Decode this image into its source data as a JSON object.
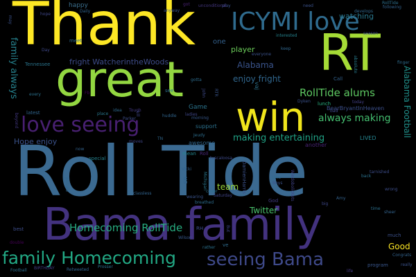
{
  "words": [
    {
      "id": "roll-tide",
      "text": "Roll Tide",
      "color": "#3b6a91"
    },
    {
      "id": "bama-family",
      "text": "Bama family",
      "color": "#43327f"
    },
    {
      "id": "thank",
      "text": "Thank",
      "color": "#fde725"
    },
    {
      "id": "rt",
      "text": "RT",
      "color": "#a5db36"
    },
    {
      "id": "great",
      "text": "great",
      "color": "#93d741"
    },
    {
      "id": "win",
      "text": "win",
      "color": "#f0e51c"
    },
    {
      "id": "icymi-love",
      "text": "ICYMI love",
      "color": "#2f6b8e"
    },
    {
      "id": "love-seeing",
      "text": "love seeing",
      "color": "#482071"
    },
    {
      "id": "family-homecoming",
      "text": "family Homecoming",
      "color": "#22a884"
    },
    {
      "id": "seeing-bama",
      "text": "seeing Bama",
      "color": "#3e4989"
    },
    {
      "id": "homecoming-rolltide",
      "text": "Homecoming RollTide",
      "color": "#27ad81"
    },
    {
      "id": "rolltide-alums",
      "text": "RollTide alums",
      "color": "#5ec962"
    },
    {
      "id": "always-making",
      "text": "always making",
      "color": "#44bf70"
    },
    {
      "id": "making-entertaining",
      "text": "making entertaining",
      "color": "#20a386"
    },
    {
      "id": "enjoy-fright",
      "text": "enjoy fright",
      "color": "#31678e"
    },
    {
      "id": "fright-watcher",
      "text": "fright WatcherintheWoods",
      "color": "#3e4c8a"
    },
    {
      "id": "family-always",
      "text": "family always",
      "color": "#26828e"
    },
    {
      "id": "alabama-football",
      "text": "Alabama Football",
      "color": "#21918c"
    },
    {
      "id": "alabama",
      "text": "Alabama",
      "color": "#3a548c"
    },
    {
      "id": "player",
      "text": "player",
      "color": "#6ccd5a"
    },
    {
      "id": "twitter",
      "text": "Twitter",
      "color": "#4ac16d"
    },
    {
      "id": "good",
      "text": "Good",
      "color": "#fde725"
    },
    {
      "id": "hope-enjoy",
      "text": "Hope enjoy",
      "color": "#3b528b"
    },
    {
      "id": "team",
      "text": "team",
      "color": "#9dd93b"
    },
    {
      "id": "watching",
      "text": "watching",
      "color": "#2a788e"
    },
    {
      "id": "happy",
      "text": "happy",
      "color": "#3b6f8e"
    },
    {
      "id": "game",
      "text": "Game",
      "color": "#2b748e"
    },
    {
      "id": "one",
      "text": "one",
      "color": "#34618d"
    },
    {
      "id": "awesome",
      "text": "awesome",
      "color": "#31668e"
    },
    {
      "id": "bearbryant",
      "text": "BearBryantInHeaven",
      "color": "#3c508b"
    },
    {
      "id": "support",
      "text": "support",
      "color": "#2c718e"
    },
    {
      "id": "lived",
      "text": "LIVED",
      "color": "#25848e"
    },
    {
      "id": "us",
      "text": "us",
      "color": "#32648e"
    },
    {
      "id": "another",
      "text": "another",
      "color": "#482475"
    },
    {
      "id": "latest",
      "text": "latest",
      "color": "#31668e"
    },
    {
      "id": "special",
      "text": "special",
      "color": "#26828e"
    },
    {
      "id": "mean",
      "text": "mean",
      "color": "#24868e"
    },
    {
      "id": "roll-small",
      "text": "Roll",
      "color": "#482878"
    },
    {
      "id": "tuscaloosa",
      "text": "tuscaloosa",
      "color": "#3e4a89"
    },
    {
      "id": "lunch",
      "text": "lunch",
      "color": "#29af7f"
    },
    {
      "id": "call",
      "text": "Call",
      "color": "#33628d"
    },
    {
      "id": "develops",
      "text": "develops",
      "color": "#31688e"
    },
    {
      "id": "rolltide-small",
      "text": "RollTide",
      "color": "#2d708e"
    },
    {
      "id": "following",
      "text": "following",
      "color": "#33638d"
    },
    {
      "id": "season",
      "text": "season",
      "color": "#3d4e8a"
    },
    {
      "id": "finger",
      "text": "finger",
      "color": "#2e6d8e"
    },
    {
      "id": "absolute",
      "text": "absolute",
      "color": "#287c8e"
    },
    {
      "id": "interested",
      "text": "interested",
      "color": "#25838e"
    },
    {
      "id": "keep",
      "text": "keep",
      "color": "#31678e"
    },
    {
      "id": "everyone",
      "text": "everyone",
      "color": "#3b528b"
    },
    {
      "id": "daily",
      "text": "Daily",
      "color": "#32658e"
    },
    {
      "id": "hope-small",
      "text": "hope",
      "color": "#3f4788"
    },
    {
      "id": "got",
      "text": "got",
      "color": "#482173"
    },
    {
      "id": "play",
      "text": "play",
      "color": "#3b528b"
    },
    {
      "id": "uncommon",
      "text": "unconditional",
      "color": "#453781"
    },
    {
      "id": "meet",
      "text": "meet",
      "color": "#2f6c8e"
    },
    {
      "id": "tennessee",
      "text": "Tennessee",
      "color": "#2b758e"
    },
    {
      "id": "day",
      "text": "Day",
      "color": "#3f4889"
    },
    {
      "id": "every",
      "text": "every",
      "color": "#2c728e"
    },
    {
      "id": "fb",
      "text": "Fb",
      "color": "#440154"
    },
    {
      "id": "see",
      "text": "see",
      "color": "#2d708e"
    },
    {
      "id": "idea",
      "text": "idea",
      "color": "#306a8e"
    },
    {
      "id": "tough",
      "text": "Tough",
      "color": "#443983"
    },
    {
      "id": "place",
      "text": "place",
      "color": "#2a788e"
    },
    {
      "id": "parker",
      "text": "Parker",
      "color": "#3d4d8a"
    },
    {
      "id": "kill",
      "text": "kill",
      "color": "#3f4788"
    },
    {
      "id": "huddle",
      "text": "huddle",
      "color": "#31668e"
    },
    {
      "id": "morning",
      "text": "morning",
      "color": "#37598c"
    },
    {
      "id": "jeudy",
      "text": "Jeudy",
      "color": "#2e6e8e"
    },
    {
      "id": "rtr",
      "text": "RTR",
      "color": "#39568c"
    },
    {
      "id": "gotta",
      "text": "gotta",
      "color": "#2e6d8e"
    },
    {
      "id": "dyken",
      "text": "Dyken",
      "color": "#3b528b"
    },
    {
      "id": "today",
      "text": "today",
      "color": "#424086"
    },
    {
      "id": "bad",
      "text": "bad",
      "color": "#3f4788"
    },
    {
      "id": "back",
      "text": "back",
      "color": "#2c728e"
    },
    {
      "id": "tarnished",
      "text": "tarnished",
      "color": "#3d4d8a"
    },
    {
      "id": "vicki",
      "text": "Vicki",
      "color": "#33628d"
    },
    {
      "id": "damienharris",
      "text": "DamienHarris",
      "color": "#3b528b"
    },
    {
      "id": "univ",
      "text": "Univ",
      "color": "#2f6c8e"
    },
    {
      "id": "boys",
      "text": "Boys",
      "color": "#3b528b"
    },
    {
      "id": "michigan",
      "text": "Michigan",
      "color": "#2a778e"
    },
    {
      "id": "windobolickets",
      "text": "WindobolicKets",
      "color": "#404387"
    },
    {
      "id": "wrong",
      "text": "wrong",
      "color": "#3d4e8a"
    },
    {
      "id": "time",
      "text": "time",
      "color": "#2c718e"
    },
    {
      "id": "sheer",
      "text": "sheer",
      "color": "#33638d"
    },
    {
      "id": "classless",
      "text": "classless",
      "color": "#32648e"
    },
    {
      "id": "saturday",
      "text": "Saturday",
      "color": "#404588"
    },
    {
      "id": "god",
      "text": "God",
      "color": "#433d84"
    },
    {
      "id": "big",
      "text": "big",
      "color": "#3f4889"
    },
    {
      "id": "amy",
      "text": "Amy",
      "color": "#33628d"
    },
    {
      "id": "cover",
      "text": "cover",
      "color": "#2c718e"
    },
    {
      "id": "wearing",
      "text": "wearing",
      "color": "#3a548c"
    },
    {
      "id": "breathed",
      "text": "breathed",
      "color": "#2e6d8e"
    },
    {
      "id": "picture",
      "text": "picture",
      "color": "#31678e"
    },
    {
      "id": "best",
      "text": "best",
      "color": "#3d4d8a"
    },
    {
      "id": "wilson",
      "text": "Wilson",
      "color": "#37598c"
    },
    {
      "id": "rather",
      "text": "rather",
      "color": "#2c728e"
    },
    {
      "id": "ve",
      "text": "ve",
      "color": "#2f6b8e"
    },
    {
      "id": "but",
      "text": "But",
      "color": "#3f4788"
    },
    {
      "id": "much",
      "text": "much",
      "color": "#3c508b"
    },
    {
      "id": "life",
      "text": "life",
      "color": "#443a83"
    },
    {
      "id": "program",
      "text": "program",
      "color": "#39568c"
    },
    {
      "id": "congrats",
      "text": "Congrats",
      "color": "#33638d"
    },
    {
      "id": "really",
      "text": "really",
      "color": "#3b528b"
    },
    {
      "id": "birthday",
      "text": "BIRTHDAY",
      "color": "#433e85"
    },
    {
      "id": "football",
      "text": "Football",
      "color": "#2e6f8e"
    },
    {
      "id": "retweeted",
      "text": "Retweeted",
      "color": "#32648e"
    },
    {
      "id": "prosser",
      "text": "Prosser",
      "color": "#2c728e"
    },
    {
      "id": "double",
      "text": "double",
      "color": "#440154"
    },
    {
      "id": "ladies",
      "text": "ladies",
      "color": "#3f4788"
    },
    {
      "id": "now",
      "text": "now",
      "color": "#33628d"
    },
    {
      "id": "may",
      "text": "may",
      "color": "#3b528b"
    },
    {
      "id": "tn",
      "text": "TN",
      "color": "#31688e"
    },
    {
      "id": "vaj",
      "text": "vaj",
      "color": "#2c728e"
    },
    {
      "id": "anyway",
      "text": "anyway",
      "color": "#3a548c"
    },
    {
      "id": "beyond",
      "text": "beyond",
      "color": "#443983"
    },
    {
      "id": "john",
      "text": "John",
      "color": "#3e4a89"
    },
    {
      "id": "rh",
      "text": "RH",
      "color": "#3d4d8a"
    },
    {
      "id": "need",
      "text": "need",
      "color": "#3b528b"
    },
    {
      "id": "moves",
      "text": "moves",
      "color": "#3f4788"
    }
  ]
}
